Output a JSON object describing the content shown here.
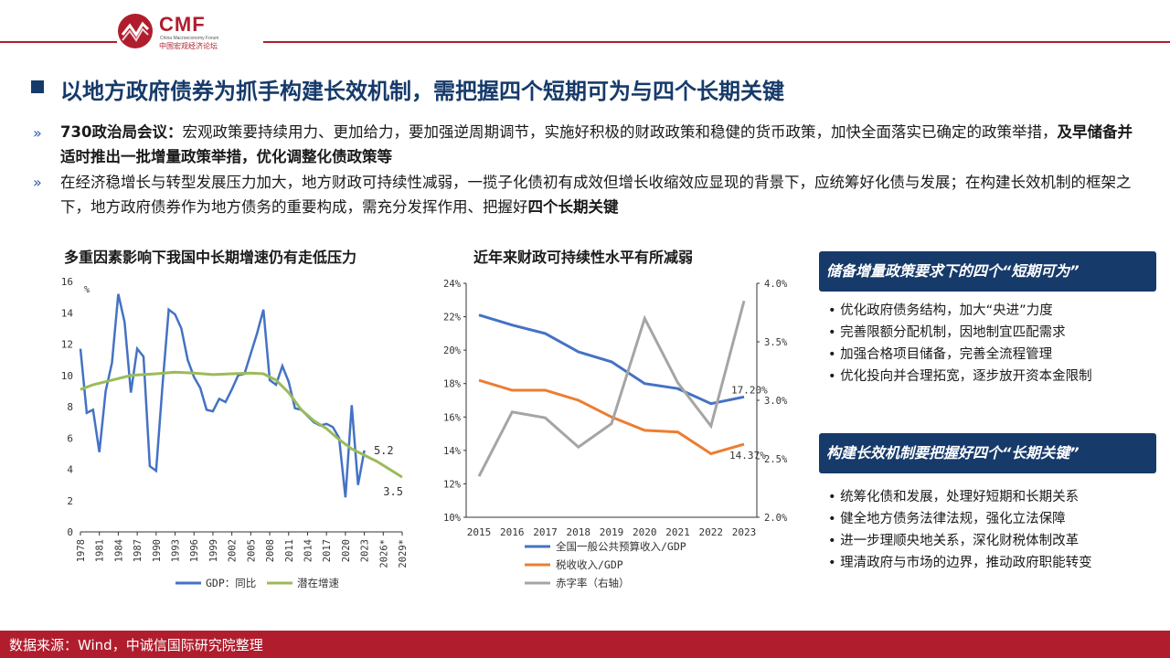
{
  "logo": {
    "mark": "CMF",
    "en": "China Macroeconomy Forum",
    "cn": "中国宏观经济论坛"
  },
  "title": "以地方政府债券为抓手构建长效机制，需把握四个短期可为与四个长期关键",
  "bullets": [
    {
      "marker": "»",
      "lead_bold": "730政治局会议：",
      "text": "宏观政策要持续用力、更加给力，要加强逆周期调节，实施好积极的财政政策和稳健的货币政策，加快全面落实已确定的政策举措，",
      "tail_bold": "及早储备并适时推出一批增量政策举措，优化调整化债政策等"
    },
    {
      "marker": "»",
      "text": "在经济稳增长与转型发展压力加大，地方财政可持续性减弱，一揽子化债初有成效但增长收缩效应显现的背景下，应统筹好化债与发展；在构建长效机制的框架之下，地方政府债券作为地方债务的重要构成，需充分发挥作用、把握好",
      "tail_bold": "四个长期关键"
    }
  ],
  "colors": {
    "navy": "#163a6a",
    "red": "#b01e2e",
    "blue": "#4472c4",
    "green": "#9bbb59",
    "orange": "#ed7d31",
    "gray": "#a5a5a5"
  },
  "chart_data": [
    {
      "type": "line",
      "title": "多重因素影响下我国中长期增速仍有走低压力",
      "ylabel": "%",
      "ylim": [
        0,
        16
      ],
      "yticks": [
        "0",
        "2",
        "4",
        "6",
        "8",
        "10",
        "12",
        "14",
        "16"
      ],
      "xlim": [
        1978,
        2029
      ],
      "xtick_labels": [
        "1978",
        "1981",
        "1984",
        "1987",
        "1990",
        "1993",
        "1996",
        "1999",
        "2002",
        "2005",
        "2008",
        "2011",
        "2014",
        "2017",
        "2020",
        "2023",
        "2026*",
        "2029*"
      ],
      "series": [
        {
          "name": "GDP：同比",
          "color": "#4472c4",
          "points": [
            [
              1978,
              11.7
            ],
            [
              1979,
              7.6
            ],
            [
              1980,
              7.8
            ],
            [
              1981,
              5.1
            ],
            [
              1982,
              9.0
            ],
            [
              1983,
              10.8
            ],
            [
              1984,
              15.2
            ],
            [
              1985,
              13.4
            ],
            [
              1986,
              8.9
            ],
            [
              1987,
              11.7
            ],
            [
              1988,
              11.2
            ],
            [
              1989,
              4.2
            ],
            [
              1990,
              3.9
            ],
            [
              1991,
              9.3
            ],
            [
              1992,
              14.2
            ],
            [
              1993,
              13.9
            ],
            [
              1994,
              13.0
            ],
            [
              1995,
              11.0
            ],
            [
              1996,
              9.9
            ],
            [
              1997,
              9.2
            ],
            [
              1998,
              7.8
            ],
            [
              1999,
              7.7
            ],
            [
              2000,
              8.5
            ],
            [
              2001,
              8.3
            ],
            [
              2002,
              9.1
            ],
            [
              2003,
              10.0
            ],
            [
              2004,
              10.1
            ],
            [
              2005,
              11.4
            ],
            [
              2006,
              12.7
            ],
            [
              2007,
              14.2
            ],
            [
              2008,
              9.7
            ],
            [
              2009,
              9.4
            ],
            [
              2010,
              10.6
            ],
            [
              2011,
              9.6
            ],
            [
              2012,
              7.9
            ],
            [
              2013,
              7.8
            ],
            [
              2014,
              7.4
            ],
            [
              2015,
              7.0
            ],
            [
              2016,
              6.8
            ],
            [
              2017,
              6.9
            ],
            [
              2018,
              6.7
            ],
            [
              2019,
              6.0
            ],
            [
              2020,
              2.2
            ],
            [
              2021,
              8.1
            ],
            [
              2022,
              3.0
            ],
            [
              2023,
              5.2
            ]
          ]
        },
        {
          "name": "潜在增速",
          "color": "#9bbb59",
          "points": [
            [
              1978,
              9.1
            ],
            [
              1980,
              9.4
            ],
            [
              1983,
              9.7
            ],
            [
              1986,
              10.0
            ],
            [
              1990,
              10.1
            ],
            [
              1993,
              10.2
            ],
            [
              1996,
              10.15
            ],
            [
              1999,
              10.05
            ],
            [
              2002,
              10.1
            ],
            [
              2005,
              10.15
            ],
            [
              2007,
              10.1
            ],
            [
              2009,
              9.7
            ],
            [
              2011,
              8.9
            ],
            [
              2013,
              7.8
            ],
            [
              2015,
              7.1
            ],
            [
              2017,
              6.6
            ],
            [
              2019,
              5.9
            ],
            [
              2021,
              5.3
            ],
            [
              2023,
              4.9
            ],
            [
              2025,
              4.5
            ],
            [
              2027,
              4.0
            ],
            [
              2029,
              3.5
            ]
          ]
        }
      ],
      "annotations": [
        "5.2",
        "3.5"
      ],
      "legend_position": "bottom"
    },
    {
      "type": "line",
      "title": "近年来财政可持续性水平有所减弱",
      "categories": [
        "2015",
        "2016",
        "2017",
        "2018",
        "2019",
        "2020",
        "2021",
        "2022",
        "2023"
      ],
      "ylim_left": [
        10,
        24
      ],
      "yticks_left": [
        "10%",
        "12%",
        "14%",
        "16%",
        "18%",
        "20%",
        "22%",
        "24%"
      ],
      "ylim_right": [
        2.0,
        4.0
      ],
      "yticks_right": [
        "2.0%",
        "2.5%",
        "3.0%",
        "3.5%",
        "4.0%"
      ],
      "series": [
        {
          "name": "全国一般公共预算收入/GDP",
          "axis": "left",
          "color": "#4472c4",
          "values": [
            22.1,
            21.5,
            21.0,
            19.9,
            19.3,
            18.0,
            17.7,
            16.8,
            17.2
          ]
        },
        {
          "name": "税收收入/GDP",
          "axis": "left",
          "color": "#ed7d31",
          "values": [
            18.2,
            17.6,
            17.6,
            17.0,
            16.0,
            15.2,
            15.1,
            13.8,
            14.37
          ]
        },
        {
          "name": "赤字率（右轴）",
          "axis": "right",
          "color": "#a5a5a5",
          "values": [
            2.35,
            2.9,
            2.85,
            2.6,
            2.8,
            3.7,
            3.15,
            2.78,
            3.85
          ]
        }
      ],
      "annotations": [
        "17.20%",
        "14.37%"
      ],
      "legend_position": "bottom"
    }
  ],
  "panels": [
    {
      "heading": "储备增量政策要求下的四个“短期可为”",
      "items": [
        "优化政府债务结构，加大“央进”力度",
        "完善限额分配机制，因地制宜匹配需求",
        "加强合格项目储备，完善全流程管理",
        "优化投向并合理拓宽，逐步放开资本金限制"
      ]
    },
    {
      "heading": "构建长效机制要把握好四个“长期关键”",
      "items": [
        "统筹化债和发展，处理好短期和长期关系",
        "健全地方债务法律法规，强化立法保障",
        "进一步理顺央地关系，深化财税体制改革",
        "理清政府与市场的边界，推动政府职能转变"
      ]
    }
  ],
  "footer": "数据来源：Wind，中诚信国际研究院整理"
}
